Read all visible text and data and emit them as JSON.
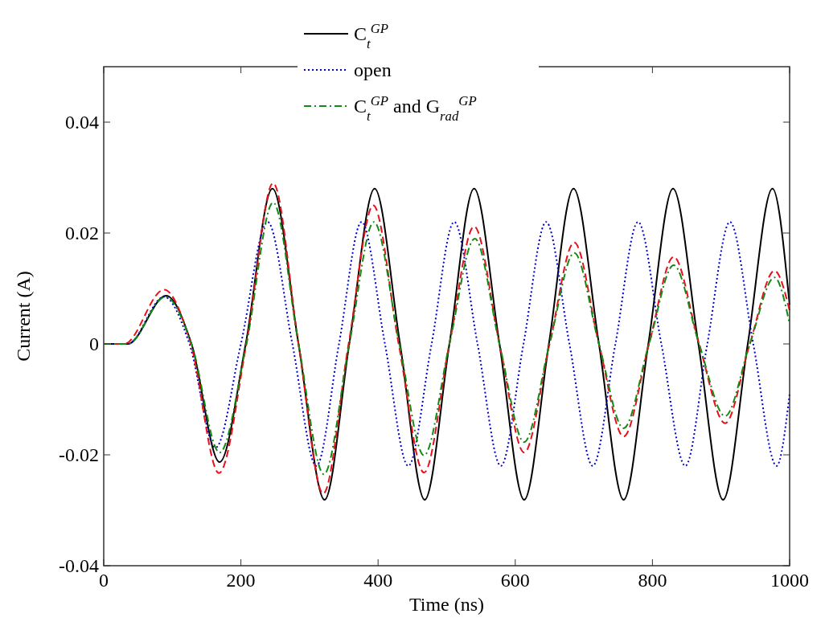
{
  "chart_data": {
    "type": "line",
    "xlabel": "Time (ns)",
    "ylabel": "Current (A)",
    "xlim": [
      0,
      1000
    ],
    "xticks": [
      0,
      200,
      400,
      600,
      800,
      1000
    ],
    "ylim": [
      -0.04,
      0.05
    ],
    "yticks": [
      -0.04,
      -0.02,
      0,
      0.02,
      0.04
    ],
    "grid": false,
    "legend": "top",
    "marker": "none",
    "series": [
      {
        "name": "C$_{t}$$^{GP}$",
        "color": "#000000",
        "line_style": "solid",
        "x": [
          0,
          35,
          91,
          128,
          169,
          207,
          246,
          284,
          322,
          358,
          395,
          432,
          468,
          504,
          540,
          577,
          613,
          649,
          685,
          722,
          758,
          794,
          830,
          867,
          903,
          939,
          975,
          1000
        ],
        "values": [
          0,
          0,
          0.0087,
          0,
          -0.0213,
          0,
          0.028,
          0,
          -0.0281,
          0,
          0.028,
          0,
          -0.0281,
          0,
          0.028,
          0,
          -0.0281,
          0,
          0.028,
          0,
          -0.0281,
          0,
          0.028,
          0,
          -0.0281,
          0,
          0.028,
          0.007
        ]
      },
      {
        "name": "open",
        "color": "#0000cc",
        "line_style": "dotted",
        "x": [
          0,
          35,
          88,
          125,
          163,
          200,
          239,
          275,
          310,
          343,
          376,
          410,
          444,
          478,
          511,
          545,
          579,
          612,
          645,
          679,
          713,
          746,
          779,
          813,
          848,
          880,
          913,
          947,
          981,
          1000
        ],
        "values": [
          0,
          0,
          0.0085,
          0,
          -0.0187,
          0,
          0.022,
          0,
          -0.022,
          0,
          0.022,
          0,
          -0.022,
          0,
          0.022,
          0,
          -0.022,
          0,
          0.022,
          0,
          -0.022,
          0,
          0.022,
          0,
          -0.022,
          0,
          0.022,
          0,
          -0.022,
          -0.009
        ]
      },
      {
        "color": "#e8101a",
        "line_style": "dashed",
        "x": [
          0,
          30,
          88,
          127,
          168,
          208,
          247,
          284,
          320,
          357,
          393,
          430,
          467,
          504,
          540,
          577,
          613,
          650,
          686,
          722,
          758,
          795,
          831,
          868,
          906,
          942,
          978,
          1000
        ],
        "values": [
          0,
          0,
          0.0098,
          0,
          -0.0233,
          0,
          0.029,
          0,
          -0.027,
          0,
          0.025,
          0,
          -0.0232,
          0,
          0.0212,
          0,
          -0.0196,
          0,
          0.0183,
          0,
          -0.0167,
          0,
          0.0157,
          0,
          -0.0143,
          0,
          0.0132,
          0.006
        ]
      },
      {
        "name": "C$_{t}$$^{GP}$ and G$_{rad}$$^{GP}$",
        "color": "#138a13",
        "line_style": "dashdot",
        "x": [
          0,
          35,
          90,
          128,
          169,
          208,
          247,
          284,
          321,
          358,
          394,
          431,
          467,
          504,
          541,
          577,
          613,
          650,
          686,
          722,
          758,
          795,
          831,
          868,
          906,
          942,
          978,
          1000
        ],
        "values": [
          0,
          0,
          0.0085,
          0,
          -0.0196,
          0,
          0.0255,
          0,
          -0.0235,
          0,
          0.022,
          0,
          -0.0201,
          0,
          0.019,
          0,
          -0.0177,
          0,
          0.0164,
          0,
          -0.0152,
          0,
          0.0142,
          0,
          -0.013,
          0,
          0.012,
          0.0036
        ]
      }
    ]
  }
}
